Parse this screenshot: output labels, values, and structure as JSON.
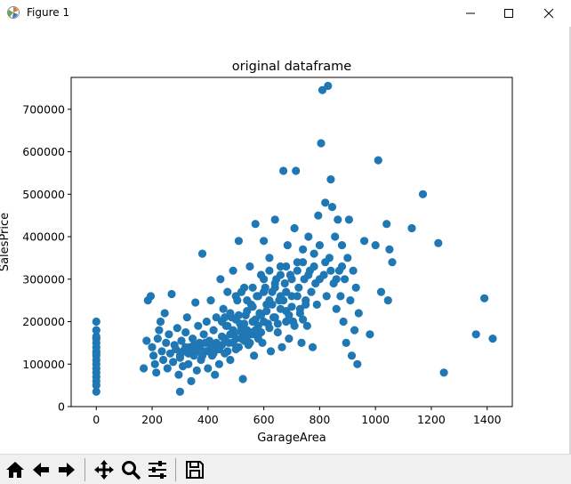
{
  "window": {
    "title": "Figure 1"
  },
  "colors": {
    "marker": "#1f77b4",
    "axes": "#000000",
    "background": "#ffffff"
  },
  "toolbar": {
    "buttons": [
      "home-icon",
      "back-icon",
      "forward-icon",
      "pan-icon",
      "zoom-icon",
      "configure-subplots-icon",
      "save-icon"
    ]
  },
  "chart_data": {
    "type": "scatter",
    "title": "original dataframe",
    "xlabel": "GarageArea",
    "ylabel": "SalesPrice",
    "xlim": [
      -90,
      1490
    ],
    "ylim": [
      0,
      775000
    ],
    "xticks": [
      0,
      200,
      400,
      600,
      800,
      1000,
      1200,
      1400
    ],
    "yticks": [
      0,
      100000,
      200000,
      300000,
      400000,
      500000,
      600000,
      700000
    ],
    "xtick_labels": [
      "0",
      "200",
      "400",
      "600",
      "800",
      "1000",
      "1200",
      "1400"
    ],
    "ytick_labels": [
      "0",
      "100000",
      "200000",
      "300000",
      "400000",
      "500000",
      "600000",
      "700000"
    ],
    "grid": false,
    "series": [
      {
        "points": [
          [
            0,
            200000
          ],
          [
            0,
            180000
          ],
          [
            0,
            160000
          ],
          [
            0,
            150000
          ],
          [
            0,
            140000
          ],
          [
            0,
            130000
          ],
          [
            0,
            120000
          ],
          [
            0,
            110000
          ],
          [
            0,
            100000
          ],
          [
            0,
            90000
          ],
          [
            0,
            80000
          ],
          [
            0,
            70000
          ],
          [
            0,
            60000
          ],
          [
            0,
            50000
          ],
          [
            0,
            35000
          ],
          [
            0,
            165000
          ],
          [
            0,
            125000
          ],
          [
            170,
            90000
          ],
          [
            180,
            155000
          ],
          [
            185,
            250000
          ],
          [
            195,
            260000
          ],
          [
            200,
            140000
          ],
          [
            205,
            120000
          ],
          [
            210,
            100000
          ],
          [
            215,
            80000
          ],
          [
            220,
            160000
          ],
          [
            225,
            180000
          ],
          [
            230,
            200000
          ],
          [
            235,
            130000
          ],
          [
            240,
            110000
          ],
          [
            245,
            220000
          ],
          [
            250,
            150000
          ],
          [
            255,
            90000
          ],
          [
            260,
            170000
          ],
          [
            265,
            125000
          ],
          [
            270,
            265000
          ],
          [
            275,
            105000
          ],
          [
            280,
            145000
          ],
          [
            285,
            135000
          ],
          [
            290,
            185000
          ],
          [
            295,
            75000
          ],
          [
            300,
            35000
          ],
          [
            300,
            115000
          ],
          [
            305,
            155000
          ],
          [
            310,
            95000
          ],
          [
            315,
            130000
          ],
          [
            320,
            175000
          ],
          [
            325,
            210000
          ],
          [
            330,
            100000
          ],
          [
            335,
            140000
          ],
          [
            340,
            60000
          ],
          [
            345,
            160000
          ],
          [
            350,
            120000
          ],
          [
            355,
            245000
          ],
          [
            360,
            85000
          ],
          [
            365,
            190000
          ],
          [
            370,
            150000
          ],
          [
            375,
            110000
          ],
          [
            380,
            360000
          ],
          [
            385,
            170000
          ],
          [
            390,
            130000
          ],
          [
            395,
            200000
          ],
          [
            400,
            90000
          ],
          [
            405,
            155000
          ],
          [
            410,
            250000
          ],
          [
            415,
            120000
          ],
          [
            420,
            180000
          ],
          [
            425,
            75000
          ],
          [
            430,
            210000
          ],
          [
            435,
            140000
          ],
          [
            440,
            100000
          ],
          [
            445,
            300000
          ],
          [
            450,
            165000
          ],
          [
            455,
            230000
          ],
          [
            460,
            125000
          ],
          [
            465,
            190000
          ],
          [
            470,
            270000
          ],
          [
            475,
            150000
          ],
          [
            480,
            110000
          ],
          [
            485,
            210000
          ],
          [
            490,
            320000
          ],
          [
            495,
            175000
          ],
          [
            500,
            135000
          ],
          [
            505,
            250000
          ],
          [
            510,
            390000
          ],
          [
            515,
            195000
          ],
          [
            520,
            160000
          ],
          [
            525,
            65000
          ],
          [
            530,
            280000
          ],
          [
            535,
            215000
          ],
          [
            540,
            180000
          ],
          [
            545,
            145000
          ],
          [
            550,
            330000
          ],
          [
            555,
            240000
          ],
          [
            560,
            200000
          ],
          [
            565,
            120000
          ],
          [
            570,
            430000
          ],
          [
            575,
            260000
          ],
          [
            580,
            170000
          ],
          [
            585,
            220000
          ],
          [
            590,
            310000
          ],
          [
            595,
            150000
          ],
          [
            600,
            390000
          ],
          [
            605,
            280000
          ],
          [
            610,
            240000
          ],
          [
            615,
            195000
          ],
          [
            620,
            350000
          ],
          [
            625,
            130000
          ],
          [
            630,
            270000
          ],
          [
            635,
            210000
          ],
          [
            640,
            440000
          ],
          [
            645,
            300000
          ],
          [
            650,
            175000
          ],
          [
            655,
            250000
          ],
          [
            660,
            330000
          ],
          [
            665,
            140000
          ],
          [
            670,
            555000
          ],
          [
            675,
            290000
          ],
          [
            680,
            225000
          ],
          [
            685,
            380000
          ],
          [
            690,
            160000
          ],
          [
            695,
            310000
          ],
          [
            700,
            260000
          ],
          [
            705,
            200000
          ],
          [
            710,
            420000
          ],
          [
            715,
            555000
          ],
          [
            720,
            340000
          ],
          [
            725,
            280000
          ],
          [
            730,
            230000
          ],
          [
            735,
            150000
          ],
          [
            740,
            370000
          ],
          [
            745,
            300000
          ],
          [
            750,
            250000
          ],
          [
            755,
            190000
          ],
          [
            760,
            400000
          ],
          [
            765,
            320000
          ],
          [
            770,
            270000
          ],
          [
            775,
            140000
          ],
          [
            780,
            360000
          ],
          [
            785,
            290000
          ],
          [
            790,
            240000
          ],
          [
            795,
            450000
          ],
          [
            800,
            380000
          ],
          [
            805,
            620000
          ],
          [
            810,
            745000
          ],
          [
            815,
            310000
          ],
          [
            820,
            480000
          ],
          [
            825,
            260000
          ],
          [
            830,
            755000
          ],
          [
            835,
            350000
          ],
          [
            840,
            535000
          ],
          [
            845,
            470000
          ],
          [
            850,
            290000
          ],
          [
            855,
            400000
          ],
          [
            860,
            230000
          ],
          [
            865,
            440000
          ],
          [
            870,
            320000
          ],
          [
            875,
            260000
          ],
          [
            880,
            380000
          ],
          [
            885,
            200000
          ],
          [
            890,
            300000
          ],
          [
            895,
            150000
          ],
          [
            900,
            350000
          ],
          [
            905,
            440000
          ],
          [
            910,
            250000
          ],
          [
            915,
            120000
          ],
          [
            920,
            320000
          ],
          [
            925,
            180000
          ],
          [
            930,
            280000
          ],
          [
            935,
            100000
          ],
          [
            940,
            220000
          ],
          [
            960,
            390000
          ],
          [
            980,
            170000
          ],
          [
            1000,
            380000
          ],
          [
            1010,
            580000
          ],
          [
            1020,
            270000
          ],
          [
            1040,
            430000
          ],
          [
            1045,
            250000
          ],
          [
            1050,
            370000
          ],
          [
            1060,
            340000
          ],
          [
            1130,
            420000
          ],
          [
            1170,
            500000
          ],
          [
            1225,
            385000
          ],
          [
            1245,
            80000
          ],
          [
            1360,
            170000
          ],
          [
            1390,
            255000
          ],
          [
            1420,
            160000
          ],
          [
            450,
            200000
          ],
          [
            460,
            210000
          ],
          [
            470,
            190000
          ],
          [
            480,
            220000
          ],
          [
            490,
            180000
          ],
          [
            500,
            205000
          ],
          [
            510,
            215000
          ],
          [
            520,
            185000
          ],
          [
            530,
            195000
          ],
          [
            540,
            225000
          ],
          [
            550,
            175000
          ],
          [
            560,
            235000
          ],
          [
            570,
            205000
          ],
          [
            580,
            190000
          ],
          [
            590,
            215000
          ],
          [
            600,
            200000
          ],
          [
            610,
            225000
          ],
          [
            620,
            185000
          ],
          [
            630,
            240000
          ],
          [
            640,
            210000
          ],
          [
            650,
            195000
          ],
          [
            660,
            230000
          ],
          [
            670,
            250000
          ],
          [
            680,
            200000
          ],
          [
            690,
            215000
          ],
          [
            700,
            235000
          ],
          [
            710,
            190000
          ],
          [
            720,
            260000
          ],
          [
            730,
            220000
          ],
          [
            740,
            205000
          ],
          [
            750,
            240000
          ],
          [
            400,
            130000
          ],
          [
            410,
            140000
          ],
          [
            420,
            125000
          ],
          [
            430,
            150000
          ],
          [
            440,
            135000
          ],
          [
            450,
            145000
          ],
          [
            460,
            160000
          ],
          [
            470,
            130000
          ],
          [
            480,
            170000
          ],
          [
            490,
            150000
          ],
          [
            500,
            160000
          ],
          [
            510,
            140000
          ],
          [
            520,
            175000
          ],
          [
            530,
            155000
          ],
          [
            540,
            165000
          ],
          [
            550,
            150000
          ],
          [
            560,
            170000
          ],
          [
            570,
            180000
          ],
          [
            580,
            160000
          ],
          [
            590,
            175000
          ],
          [
            300,
            120000
          ],
          [
            310,
            130000
          ],
          [
            320,
            140000
          ],
          [
            330,
            125000
          ],
          [
            340,
            135000
          ],
          [
            350,
            145000
          ],
          [
            360,
            130000
          ],
          [
            370,
            140000
          ],
          [
            380,
            120000
          ],
          [
            390,
            150000
          ],
          [
            600,
            300000
          ],
          [
            620,
            320000
          ],
          [
            640,
            290000
          ],
          [
            660,
            310000
          ],
          [
            680,
            330000
          ],
          [
            700,
            300000
          ],
          [
            720,
            320000
          ],
          [
            740,
            340000
          ],
          [
            760,
            310000
          ],
          [
            780,
            330000
          ],
          [
            800,
            300000
          ],
          [
            820,
            340000
          ],
          [
            840,
            320000
          ],
          [
            860,
            300000
          ],
          [
            880,
            330000
          ],
          [
            500,
            260000
          ],
          [
            520,
            270000
          ],
          [
            540,
            250000
          ],
          [
            560,
            280000
          ],
          [
            580,
            260000
          ],
          [
            600,
            270000
          ],
          [
            620,
            250000
          ],
          [
            640,
            280000
          ],
          [
            660,
            260000
          ],
          [
            680,
            270000
          ]
        ]
      }
    ]
  }
}
